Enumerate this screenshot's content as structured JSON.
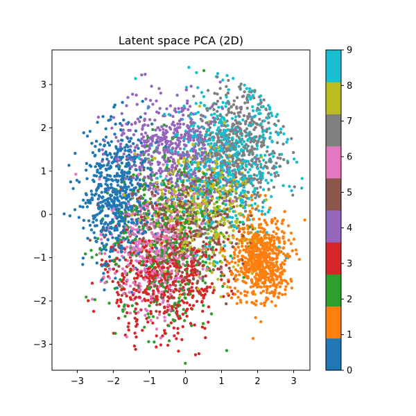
{
  "chart_data": {
    "type": "scatter",
    "title": "Latent space PCA (2D)",
    "xlabel": "",
    "ylabel": "",
    "xlim": [
      -3.7,
      3.45
    ],
    "ylim": [
      -3.6,
      3.8
    ],
    "x_ticks": [
      -3,
      -2,
      -1,
      0,
      1,
      2,
      3
    ],
    "y_ticks": [
      -3,
      -2,
      -1,
      0,
      1,
      2,
      3
    ],
    "grid": false,
    "legend": "none",
    "colorbar": {
      "range": [
        0,
        9
      ],
      "ticks": [
        0,
        1,
        2,
        3,
        4,
        5,
        6,
        7,
        8,
        9
      ],
      "colors": [
        "#1f77b4",
        "#ff7f0e",
        "#2ca02c",
        "#d62728",
        "#9467bd",
        "#8c564b",
        "#e377c2",
        "#7f7f7f",
        "#bcbd22",
        "#17becf"
      ]
    },
    "series": [
      {
        "label": 0,
        "color": "#1f77b4",
        "center": [
          -1.9,
          0.5
        ],
        "spread": [
          0.45,
          0.8
        ],
        "count": 600
      },
      {
        "label": 1,
        "color": "#ff7f0e",
        "center": [
          2.1,
          -1.05
        ],
        "spread": [
          0.4,
          0.48
        ],
        "count": 650
      },
      {
        "label": 2,
        "color": "#2ca02c",
        "center": [
          -0.5,
          -0.6
        ],
        "spread": [
          0.85,
          1.0
        ],
        "count": 450
      },
      {
        "label": 3,
        "color": "#d62728",
        "center": [
          -0.6,
          -1.5
        ],
        "spread": [
          0.75,
          0.65
        ],
        "count": 500
      },
      {
        "label": 4,
        "color": "#9467bd",
        "center": [
          -0.4,
          1.5
        ],
        "spread": [
          0.75,
          0.6
        ],
        "count": 500
      },
      {
        "label": 5,
        "color": "#8c564b",
        "center": [
          0.0,
          -0.3
        ],
        "spread": [
          0.8,
          0.75
        ],
        "count": 400
      },
      {
        "label": 6,
        "color": "#e377c2",
        "center": [
          -0.9,
          -0.7
        ],
        "spread": [
          0.65,
          0.7
        ],
        "count": 450
      },
      {
        "label": 7,
        "color": "#7f7f7f",
        "center": [
          1.4,
          1.5
        ],
        "spread": [
          0.6,
          0.7
        ],
        "count": 500
      },
      {
        "label": 8,
        "color": "#bcbd22",
        "center": [
          0.5,
          0.2
        ],
        "spread": [
          0.75,
          0.75
        ],
        "count": 400
      },
      {
        "label": 9,
        "color": "#17becf",
        "center": [
          1.2,
          1.3
        ],
        "spread": [
          0.8,
          0.85
        ],
        "count": 600
      }
    ]
  }
}
